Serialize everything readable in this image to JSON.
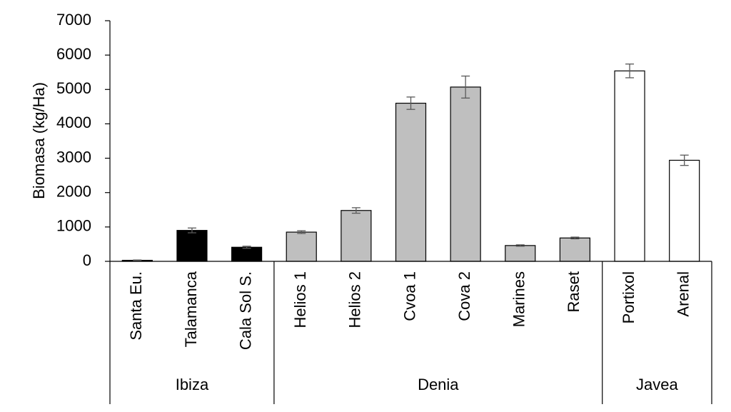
{
  "chart_data": {
    "type": "bar",
    "ylabel": "Biomasa (kg/Ha)",
    "ylim": [
      0,
      7000
    ],
    "yticks": [
      0,
      1000,
      2000,
      3000,
      4000,
      5000,
      6000,
      7000
    ],
    "grid": false,
    "legend": "none",
    "groups": [
      {
        "name": "Ibiza",
        "start": 0,
        "end": 2
      },
      {
        "name": "Denia",
        "start": 3,
        "end": 8
      },
      {
        "name": "Javea",
        "start": 9,
        "end": 10
      }
    ],
    "categories": [
      "Santa Eu.",
      "Talamanca",
      "Cala Sol S.",
      "Helios 1",
      "Helios 2",
      "Cvoa 1",
      "Cova 2",
      "Marines",
      "Raset",
      "Portixol",
      "Arenal"
    ],
    "values": [
      30,
      900,
      410,
      850,
      1480,
      4600,
      5070,
      460,
      680,
      5540,
      2940
    ],
    "errors": [
      10,
      70,
      30,
      40,
      80,
      180,
      320,
      20,
      25,
      200,
      150
    ],
    "colors": [
      "#000000",
      "#000000",
      "#000000",
      "#bfbfbf",
      "#bfbfbf",
      "#bfbfbf",
      "#bfbfbf",
      "#bfbfbf",
      "#bfbfbf",
      "#ffffff",
      "#ffffff"
    ],
    "bar_outline": "#000000",
    "error_bar_color": "#595959"
  }
}
